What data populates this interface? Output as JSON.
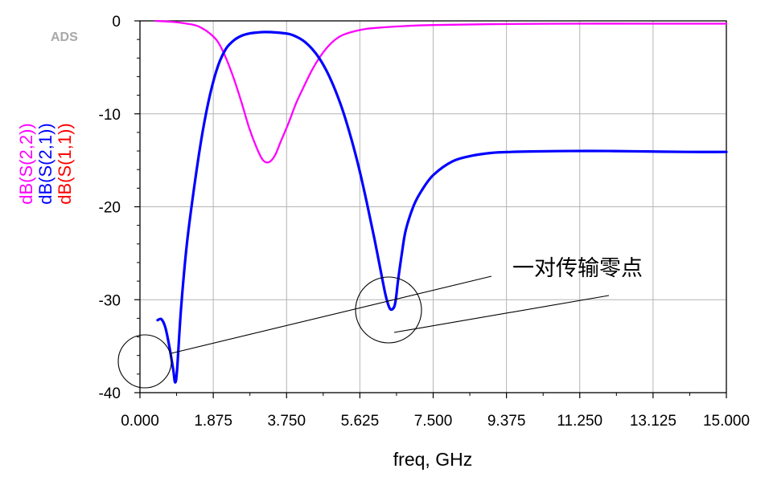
{
  "chart_data": {
    "type": "line",
    "watermark": "ADS",
    "xlabel": "freq, GHz",
    "xlim": [
      0,
      15
    ],
    "ylim": [
      -40,
      0
    ],
    "x_ticks": [
      "0.000",
      "1.875",
      "3.750",
      "5.625",
      "7.500",
      "9.375",
      "11.250",
      "13.125",
      "15.000"
    ],
    "y_ticks": [
      "0",
      "-10",
      "-20",
      "-30",
      "-40"
    ],
    "grid": true,
    "annotation": "一对传输零点",
    "series": [
      {
        "name": "dB(S(2,2))",
        "color": "#ff00ff",
        "x": [
          0.4,
          0.8,
          1.2,
          1.5,
          1.8,
          2.0,
          2.2,
          2.4,
          2.6,
          2.8,
          3.0,
          3.15,
          3.3,
          3.45,
          3.6,
          3.8,
          4.0,
          4.2,
          4.4,
          4.6,
          4.8,
          5.0,
          5.2,
          5.5,
          5.8,
          6.2,
          6.8,
          7.5,
          9.0,
          11.0,
          13.0,
          15.0
        ],
        "y": [
          0.0,
          -0.1,
          -0.3,
          -0.6,
          -1.4,
          -2.3,
          -4.0,
          -6.2,
          -8.8,
          -11.6,
          -13.8,
          -15.0,
          -15.2,
          -14.5,
          -13.0,
          -11.0,
          -8.8,
          -7.0,
          -5.3,
          -3.9,
          -2.8,
          -2.0,
          -1.5,
          -1.1,
          -0.85,
          -0.7,
          -0.55,
          -0.45,
          -0.35,
          -0.3,
          -0.3,
          -0.3
        ]
      },
      {
        "name": "dB(S(2,1))",
        "color": "#0000ff",
        "x": [
          0.45,
          0.55,
          0.65,
          0.75,
          0.85,
          0.9,
          0.95,
          1.05,
          1.2,
          1.4,
          1.6,
          1.8,
          2.0,
          2.2,
          2.4,
          2.6,
          2.8,
          3.0,
          3.2,
          3.5,
          3.8,
          4.0,
          4.2,
          4.4,
          4.6,
          4.8,
          5.0,
          5.2,
          5.4,
          5.6,
          5.8,
          6.0,
          6.2,
          6.3,
          6.4,
          6.5,
          6.55,
          6.6,
          6.7,
          6.8,
          7.0,
          7.2,
          7.5,
          8.0,
          8.5,
          9.0,
          9.5,
          10.0,
          11.0,
          12.0,
          13.0,
          14.0,
          15.0
        ],
        "y": [
          -32.2,
          -32.1,
          -33.0,
          -35.0,
          -37.5,
          -38.9,
          -37.5,
          -31.0,
          -24.0,
          -17.5,
          -12.0,
          -7.8,
          -4.8,
          -3.0,
          -2.1,
          -1.6,
          -1.35,
          -1.25,
          -1.2,
          -1.25,
          -1.4,
          -1.7,
          -2.2,
          -3.0,
          -4.1,
          -5.6,
          -7.5,
          -9.8,
          -12.6,
          -15.8,
          -19.5,
          -23.5,
          -27.8,
          -29.8,
          -31.0,
          -30.8,
          -29.8,
          -28.0,
          -25.0,
          -22.5,
          -19.9,
          -18.3,
          -16.6,
          -15.1,
          -14.5,
          -14.2,
          -14.1,
          -14.05,
          -14.0,
          -14.0,
          -14.05,
          -14.1,
          -14.1
        ]
      },
      {
        "name": "dB(S(1,1))",
        "color": "#ff0000",
        "x": [],
        "y": []
      }
    ]
  }
}
